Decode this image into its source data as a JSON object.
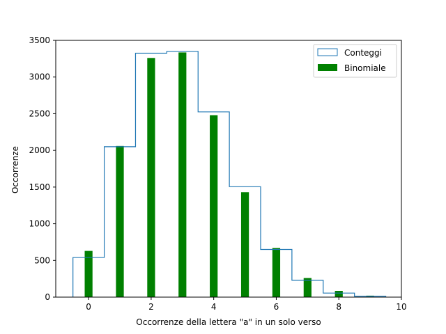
{
  "chart_data": {
    "type": "bar",
    "xlabel": "Occorrenze della lettera \"a\" in un solo verso",
    "ylabel": "Occorrenze",
    "xlim": [
      -1.05,
      10
    ],
    "ylim": [
      0,
      3500
    ],
    "xticks": [
      0,
      2,
      4,
      6,
      8,
      10
    ],
    "yticks": [
      0,
      500,
      1000,
      1500,
      2000,
      2500,
      3000,
      3500
    ],
    "grid": false,
    "legend_position": "top-right",
    "series": [
      {
        "name": "Conteggi",
        "kind": "step-histogram",
        "color": "#1f77b4",
        "bin_edges": [
          -0.5,
          0.5,
          1.5,
          2.5,
          3.5,
          4.5,
          5.5,
          6.5,
          7.5,
          8.5,
          9.5
        ],
        "values": [
          540,
          2050,
          3325,
          3350,
          2525,
          1505,
          650,
          230,
          55,
          12
        ]
      },
      {
        "name": "Binomiale",
        "kind": "bar",
        "color": "#008000",
        "x": [
          0,
          1,
          2,
          3,
          4,
          5,
          6,
          7,
          8,
          9
        ],
        "values": [
          630,
          2060,
          3260,
          3335,
          2480,
          1430,
          670,
          260,
          85,
          20
        ],
        "bar_width": 0.25
      }
    ]
  }
}
